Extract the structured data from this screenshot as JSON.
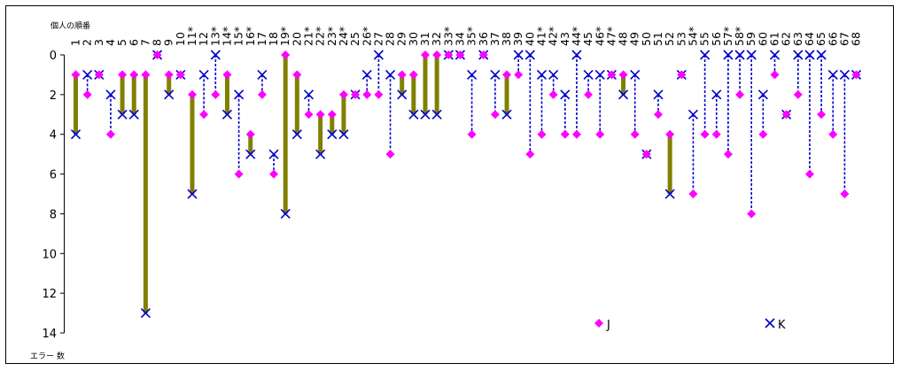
{
  "chart_data": {
    "type": "scatter",
    "ylabel_top": "個人の順番",
    "xlabel_bottom": "エラー 数",
    "y_axis_reversed": true,
    "ylim": [
      0,
      14
    ],
    "yticks": [
      0,
      2,
      4,
      6,
      8,
      10,
      12,
      14
    ],
    "grid": false,
    "legend": {
      "placement": "bottom-right",
      "entries": [
        "J",
        "K"
      ]
    },
    "colors": {
      "J": "#ff00ff",
      "K": "#0000cc",
      "bar": "#808000",
      "connector": "#0000cc"
    },
    "categories": [
      "1",
      "2",
      "3",
      "4",
      "5",
      "6",
      "7",
      "8",
      "9",
      "10",
      "11*",
      "12",
      "13*",
      "14*",
      "15*",
      "16*",
      "17",
      "18",
      "19*",
      "20",
      "21*",
      "22*",
      "23*",
      "24*",
      "25",
      "26*",
      "27",
      "28",
      "29",
      "30",
      "31",
      "32",
      "33*",
      "34",
      "35*",
      "36",
      "37",
      "38",
      "39",
      "40",
      "41*",
      "42*",
      "43",
      "44*",
      "45",
      "46*",
      "47*",
      "48",
      "49",
      "50",
      "51",
      "52",
      "53",
      "54*",
      "55",
      "56",
      "57*",
      "58*",
      "59",
      "60",
      "61",
      "62",
      "63",
      "64",
      "65",
      "66",
      "67",
      "68"
    ],
    "series": [
      {
        "name": "J",
        "values": [
          1,
          2,
          1,
          4,
          1,
          1,
          1,
          0,
          1,
          1,
          2,
          3,
          2,
          1,
          6,
          4,
          2,
          6,
          0,
          1,
          3,
          3,
          3,
          2,
          2,
          2,
          2,
          5,
          1,
          1,
          0,
          0,
          0,
          0,
          4,
          0,
          3,
          1,
          1,
          5,
          4,
          2,
          4,
          4,
          2,
          4,
          1,
          1,
          4,
          5,
          3,
          4,
          1,
          7,
          4,
          4,
          5,
          2,
          8,
          4,
          1,
          3,
          2,
          6,
          3,
          4,
          7,
          1
        ]
      },
      {
        "name": "K",
        "values": [
          4,
          1,
          1,
          2,
          3,
          3,
          13,
          0,
          2,
          1,
          7,
          1,
          0,
          3,
          2,
          5,
          1,
          5,
          8,
          4,
          2,
          5,
          4,
          4,
          2,
          1,
          0,
          1,
          2,
          3,
          3,
          3,
          0,
          0,
          1,
          0,
          1,
          3,
          0,
          0,
          1,
          1,
          2,
          0,
          1,
          1,
          1,
          2,
          1,
          5,
          2,
          7,
          1,
          3,
          0,
          2,
          0,
          0,
          0,
          2,
          0,
          3,
          0,
          0,
          0,
          1,
          1,
          1
        ]
      }
    ]
  }
}
